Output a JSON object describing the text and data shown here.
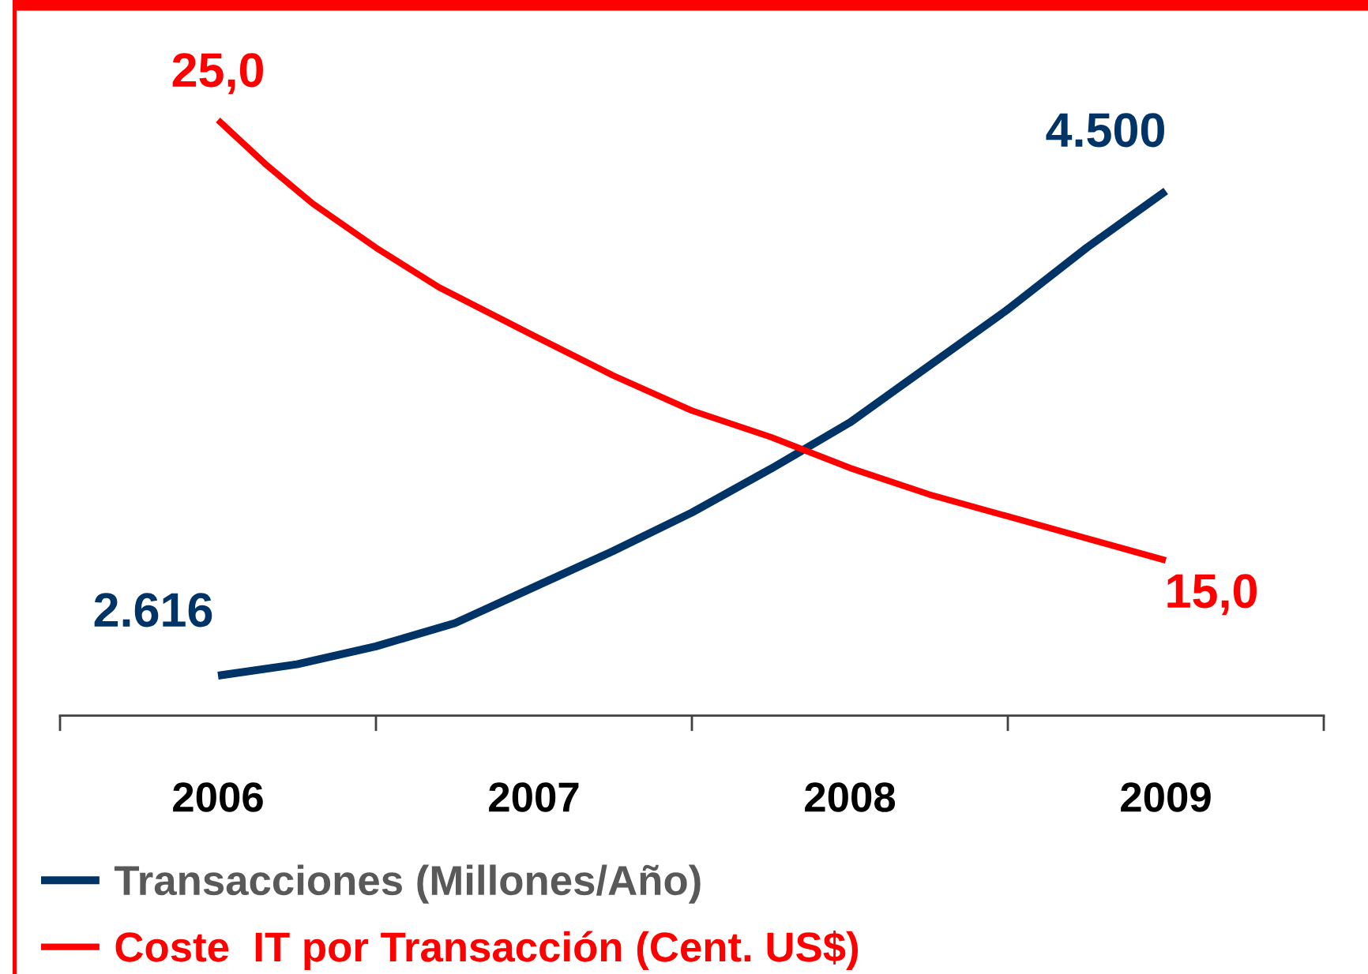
{
  "chart_data": {
    "type": "line",
    "xlim": [
      2005.5,
      2009.5
    ],
    "xticks": [
      2006,
      2007,
      2008,
      2009
    ],
    "tick_labels": "x",
    "legend": "bottom left",
    "series": [
      {
        "name": "Transacciones (Millones/Año)",
        "color": "#003366",
        "x": [
          2006,
          2006.25,
          2006.5,
          2006.75,
          2007,
          2007.25,
          2007.5,
          2007.75,
          2008,
          2008.25,
          2008.5,
          2008.75,
          2009
        ],
        "values": [
          2616,
          2660,
          2730,
          2820,
          2960,
          3100,
          3250,
          3420,
          3600,
          3820,
          4040,
          4280,
          4500
        ],
        "value_labels": [
          "2.616",
          null,
          null,
          null,
          null,
          null,
          null,
          null,
          null,
          null,
          null,
          null,
          "4.500"
        ]
      },
      {
        "name": "Coste  IT por Transacción (Cent. US$)",
        "color": "#ff0000",
        "axis": "y2",
        "x": [
          2006,
          2006.15,
          2006.3,
          2006.5,
          2006.7,
          2007,
          2007.25,
          2007.5,
          2007.75,
          2008,
          2008.25,
          2008.5,
          2008.75,
          2009
        ],
        "values": [
          25.0,
          24.0,
          23.1,
          22.1,
          21.2,
          20.1,
          19.2,
          18.4,
          17.8,
          17.1,
          16.5,
          16.0,
          15.5,
          15.0
        ],
        "value_labels": [
          "25,0",
          null,
          null,
          null,
          null,
          null,
          null,
          null,
          null,
          null,
          null,
          null,
          null,
          "15,0"
        ]
      }
    ]
  }
}
